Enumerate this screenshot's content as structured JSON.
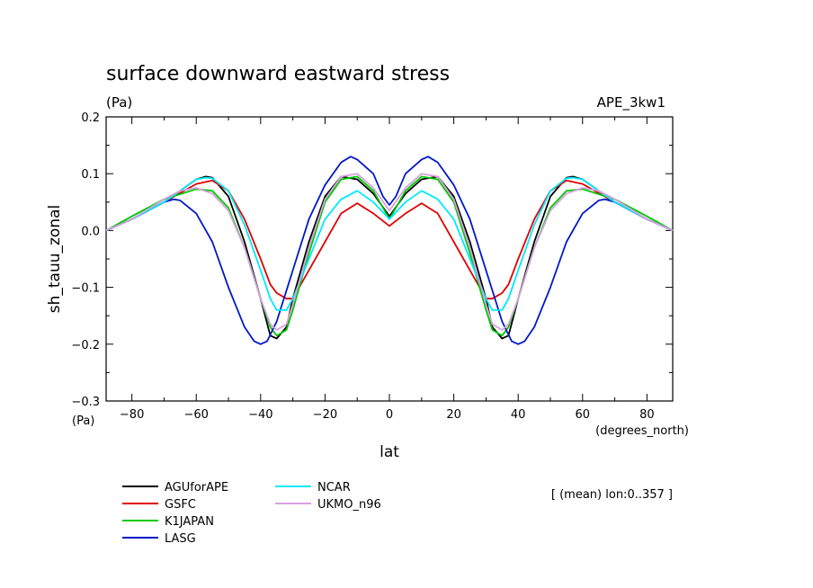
{
  "chart_data": {
    "type": "line",
    "title": "surface downward eastward stress",
    "units": "(Pa)",
    "experiment": "APE_3kw1",
    "ylabel": "sh_tauu_zonal",
    "y_units_label": "(Pa)",
    "xlabel": "lat",
    "x_units_label": "(degrees_north)",
    "note": "[ (mean) lon:0..357 ]",
    "xlim": [
      -88,
      88
    ],
    "ylim": [
      -0.3,
      0.2
    ],
    "x_ticks": [
      -80,
      -60,
      -40,
      -20,
      0,
      20,
      40,
      60,
      80
    ],
    "x_tick_labels": [
      "−80",
      "−60",
      "−40",
      "−20",
      "0",
      "20",
      "40",
      "60",
      "80"
    ],
    "y_ticks": [
      -0.3,
      -0.2,
      -0.1,
      0.0,
      0.1,
      0.2
    ],
    "y_tick_labels": [
      "−0.3",
      "−0.2",
      "−0.1",
      "0.0",
      "0.1",
      "0.2"
    ],
    "grid": false,
    "legend_position": "bottom-left",
    "series": [
      {
        "name": "AGUforAPE",
        "color": "#000000",
        "x": [
          -88,
          -80,
          -70,
          -65,
          -60,
          -57,
          -55,
          -50,
          -45,
          -40,
          -37,
          -35,
          -32,
          -30,
          -25,
          -20,
          -15,
          -10,
          -5,
          0,
          5,
          10,
          15,
          20,
          25,
          30,
          32,
          35,
          37,
          40,
          45,
          50,
          55,
          57,
          60,
          65,
          70,
          80,
          88
        ],
        "y": [
          0.0,
          0.02,
          0.05,
          0.07,
          0.09,
          0.095,
          0.093,
          0.06,
          -0.02,
          -0.12,
          -0.185,
          -0.19,
          -0.17,
          -0.12,
          -0.02,
          0.06,
          0.095,
          0.09,
          0.065,
          0.025,
          0.065,
          0.09,
          0.095,
          0.06,
          -0.02,
          -0.12,
          -0.17,
          -0.19,
          -0.185,
          -0.12,
          -0.02,
          0.06,
          0.093,
          0.095,
          0.09,
          0.07,
          0.05,
          0.02,
          0.0
        ]
      },
      {
        "name": "GSFC",
        "color": "#e00000",
        "x": [
          -88,
          -80,
          -70,
          -60,
          -55,
          -50,
          -45,
          -40,
          -37,
          -35,
          -32,
          -30,
          -25,
          -20,
          -15,
          -10,
          -5,
          0,
          5,
          10,
          15,
          20,
          25,
          30,
          32,
          35,
          37,
          40,
          45,
          50,
          55,
          60,
          70,
          80,
          88
        ],
        "y": [
          0.0,
          0.02,
          0.05,
          0.082,
          0.088,
          0.07,
          0.02,
          -0.05,
          -0.095,
          -0.11,
          -0.12,
          -0.12,
          -0.07,
          -0.02,
          0.03,
          0.048,
          0.03,
          0.008,
          0.03,
          0.048,
          0.03,
          -0.02,
          -0.07,
          -0.12,
          -0.12,
          -0.11,
          -0.095,
          -0.05,
          0.02,
          0.07,
          0.088,
          0.082,
          0.05,
          0.02,
          0.0
        ]
      },
      {
        "name": "K1JAPAN",
        "color": "#00c800",
        "x": [
          -88,
          -80,
          -70,
          -60,
          -55,
          -50,
          -45,
          -40,
          -37,
          -35,
          -32,
          -30,
          -25,
          -20,
          -15,
          -10,
          -5,
          0,
          5,
          10,
          15,
          20,
          25,
          30,
          32,
          35,
          37,
          40,
          45,
          50,
          55,
          60,
          70,
          80,
          88
        ],
        "y": [
          0.0,
          0.025,
          0.055,
          0.073,
          0.07,
          0.04,
          -0.03,
          -0.12,
          -0.17,
          -0.185,
          -0.175,
          -0.14,
          -0.04,
          0.05,
          0.09,
          0.095,
          0.07,
          0.02,
          0.07,
          0.095,
          0.09,
          0.05,
          -0.04,
          -0.14,
          -0.175,
          -0.185,
          -0.17,
          -0.12,
          -0.03,
          0.04,
          0.07,
          0.073,
          0.055,
          0.025,
          0.0
        ]
      },
      {
        "name": "LASG",
        "color": "#0018c8",
        "x": [
          -88,
          -80,
          -75,
          -70,
          -67,
          -65,
          -60,
          -55,
          -50,
          -45,
          -42,
          -40,
          -38,
          -35,
          -30,
          -25,
          -20,
          -15,
          -12,
          -10,
          -5,
          -2,
          0,
          2,
          5,
          10,
          12,
          15,
          20,
          25,
          30,
          35,
          38,
          40,
          42,
          45,
          50,
          55,
          60,
          65,
          67,
          70,
          75,
          80,
          88
        ],
        "y": [
          0.0,
          0.02,
          0.035,
          0.05,
          0.055,
          0.053,
          0.03,
          -0.02,
          -0.1,
          -0.17,
          -0.195,
          -0.2,
          -0.195,
          -0.16,
          -0.07,
          0.02,
          0.08,
          0.12,
          0.13,
          0.125,
          0.1,
          0.06,
          0.045,
          0.06,
          0.1,
          0.125,
          0.13,
          0.12,
          0.08,
          0.02,
          -0.07,
          -0.16,
          -0.195,
          -0.2,
          -0.195,
          -0.17,
          -0.1,
          -0.02,
          0.03,
          0.053,
          0.055,
          0.05,
          0.035,
          0.02,
          0.0
        ]
      },
      {
        "name": "NCAR",
        "color": "#00e8ff",
        "x": [
          -88,
          -80,
          -70,
          -60,
          -57,
          -55,
          -50,
          -45,
          -40,
          -37,
          -35,
          -32,
          -30,
          -25,
          -20,
          -15,
          -10,
          -5,
          0,
          5,
          10,
          15,
          20,
          25,
          30,
          32,
          35,
          37,
          40,
          45,
          50,
          55,
          57,
          60,
          70,
          80,
          88
        ],
        "y": [
          0.0,
          0.02,
          0.05,
          0.09,
          0.093,
          0.092,
          0.07,
          0.01,
          -0.07,
          -0.12,
          -0.14,
          -0.14,
          -0.12,
          -0.05,
          0.02,
          0.055,
          0.07,
          0.05,
          0.02,
          0.05,
          0.07,
          0.055,
          0.02,
          -0.05,
          -0.12,
          -0.14,
          -0.14,
          -0.12,
          -0.07,
          0.01,
          0.07,
          0.092,
          0.093,
          0.09,
          0.05,
          0.02,
          0.0
        ]
      },
      {
        "name": "UKMO_n96",
        "color": "#d8a0e0",
        "x": [
          -88,
          -80,
          -70,
          -65,
          -60,
          -55,
          -50,
          -45,
          -40,
          -37,
          -35,
          -32,
          -30,
          -25,
          -20,
          -15,
          -10,
          -5,
          0,
          5,
          10,
          15,
          20,
          25,
          30,
          32,
          35,
          37,
          40,
          45,
          50,
          55,
          60,
          65,
          70,
          80,
          88
        ],
        "y": [
          0.0,
          0.02,
          0.055,
          0.07,
          0.075,
          0.065,
          0.035,
          -0.03,
          -0.12,
          -0.165,
          -0.175,
          -0.165,
          -0.13,
          -0.03,
          0.055,
          0.095,
          0.1,
          0.075,
          0.035,
          0.075,
          0.1,
          0.095,
          0.055,
          -0.03,
          -0.13,
          -0.165,
          -0.175,
          -0.165,
          -0.12,
          -0.03,
          0.035,
          0.065,
          0.075,
          0.07,
          0.055,
          0.02,
          0.0
        ]
      }
    ]
  }
}
